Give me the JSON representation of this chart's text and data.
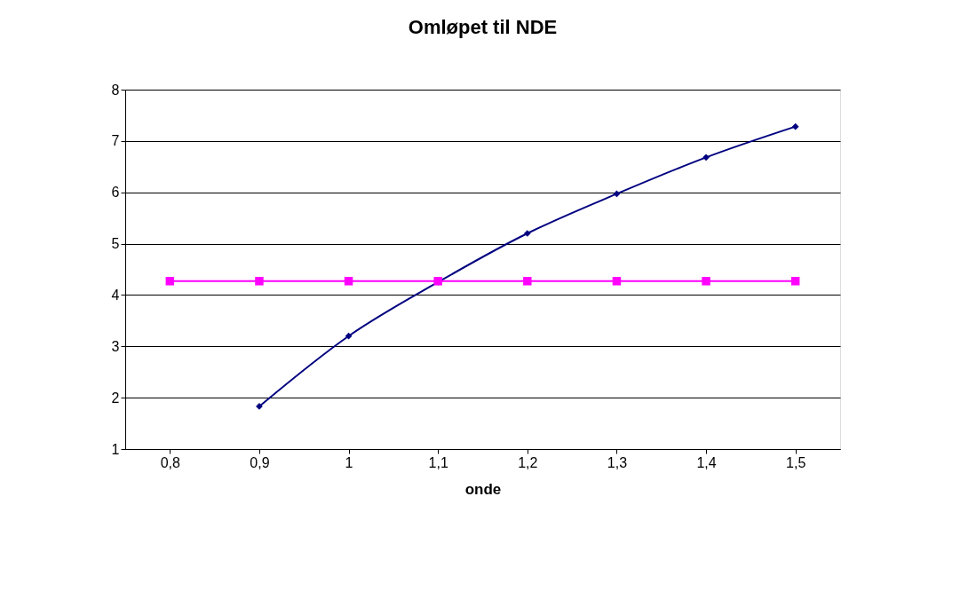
{
  "chart_data": {
    "type": "line",
    "title": "Omløpet til NDE",
    "xlabel": "onde",
    "categories": [
      "0,8",
      "0,9",
      "1",
      "1,1",
      "1,2",
      "1,3",
      "1,4",
      "1,5"
    ],
    "series": [
      {
        "color": "#000080",
        "marker": "diamond",
        "values": [
          null,
          1.83,
          3.2,
          4.25,
          5.2,
          5.97,
          6.68,
          7.28
        ]
      },
      {
        "color": "#ff00ff",
        "marker": "square",
        "values": [
          4.27,
          4.27,
          4.27,
          4.27,
          4.27,
          4.27,
          4.27,
          4.27
        ]
      }
    ],
    "ylim": [
      1,
      8
    ],
    "yticks": [
      1,
      2,
      3,
      4,
      5,
      6,
      7,
      8
    ],
    "grid": "y",
    "line_style": "solid"
  }
}
